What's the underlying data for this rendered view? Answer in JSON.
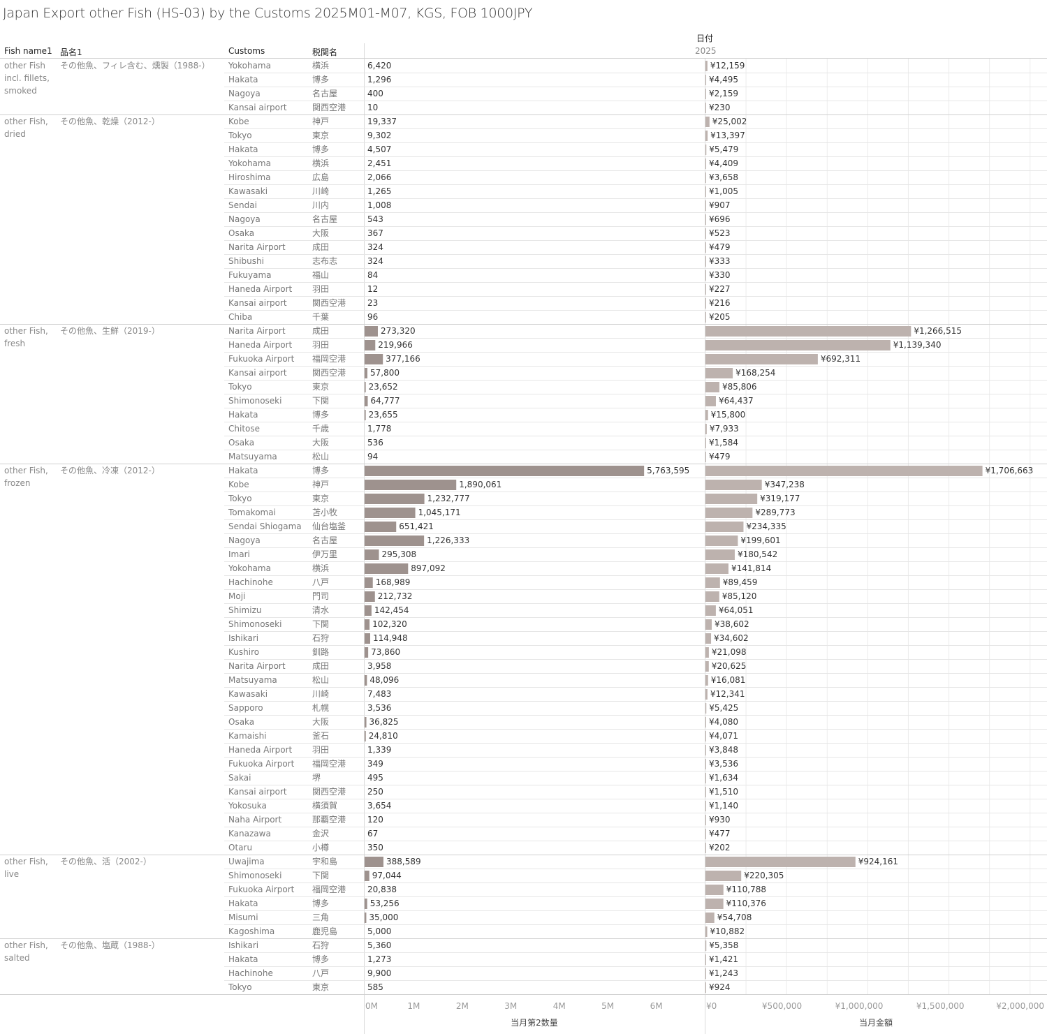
{
  "title": "Japan Export other Fish (HS-03) by the Customs 2025M01-M07, KGS, FOB 1000JPY",
  "headers": {
    "fish_name": "Fish name1",
    "hinmei": "品名1",
    "customs": "Customs",
    "zeikan": "税関名",
    "date_label": "日付",
    "year": "2025"
  },
  "colors": {
    "quantity_bar": "#9e928e",
    "value_bar": "#bdb2ae",
    "grid": "#ececec",
    "row_line": "#e6e6e6"
  },
  "chart_data": {
    "type": "bar",
    "orientation": "horizontal",
    "xlabel_quantity": "当月第2数量",
    "xlabel_value": "当月金額",
    "quantity_xlim": [
      0,
      7000000
    ],
    "value_xlim": [
      0,
      2100000
    ],
    "quantity_ticks": [
      "0M",
      "1M",
      "2M",
      "3M",
      "4M",
      "5M",
      "6M"
    ],
    "value_ticks": [
      "¥0",
      "¥500,000",
      "¥1,000,000",
      "¥1,500,000",
      "¥2,000,000"
    ],
    "groups": [
      {
        "fish": [
          "other Fish",
          "incl. fillets,",
          "smoked"
        ],
        "hinmei": "その他魚、フィレ含む、燻製（1988-）",
        "rows": [
          {
            "customs": "Yokohama",
            "zeikan": "横浜",
            "quantity": 6420,
            "quantity_label": "6,420",
            "value": 12159,
            "value_label": "¥12,159"
          },
          {
            "customs": "Hakata",
            "zeikan": "博多",
            "quantity": 1296,
            "quantity_label": "1,296",
            "value": 4495,
            "value_label": "¥4,495"
          },
          {
            "customs": "Nagoya",
            "zeikan": "名古屋",
            "quantity": 400,
            "quantity_label": "400",
            "value": 2159,
            "value_label": "¥2,159"
          },
          {
            "customs": "Kansai airport",
            "zeikan": "関西空港",
            "quantity": 10,
            "quantity_label": "10",
            "value": 230,
            "value_label": "¥230"
          }
        ]
      },
      {
        "fish": [
          "other Fish,",
          "dried"
        ],
        "hinmei": "その他魚、乾燥（2012-）",
        "rows": [
          {
            "customs": "Kobe",
            "zeikan": "神戸",
            "quantity": 19337,
            "quantity_label": "19,337",
            "value": 25002,
            "value_label": "¥25,002"
          },
          {
            "customs": "Tokyo",
            "zeikan": "東京",
            "quantity": 9302,
            "quantity_label": "9,302",
            "value": 13397,
            "value_label": "¥13,397"
          },
          {
            "customs": "Hakata",
            "zeikan": "博多",
            "quantity": 4507,
            "quantity_label": "4,507",
            "value": 5479,
            "value_label": "¥5,479"
          },
          {
            "customs": "Yokohama",
            "zeikan": "横浜",
            "quantity": 2451,
            "quantity_label": "2,451",
            "value": 4409,
            "value_label": "¥4,409"
          },
          {
            "customs": "Hiroshima",
            "zeikan": "広島",
            "quantity": 2066,
            "quantity_label": "2,066",
            "value": 3658,
            "value_label": "¥3,658"
          },
          {
            "customs": "Kawasaki",
            "zeikan": "川崎",
            "quantity": 1265,
            "quantity_label": "1,265",
            "value": 1005,
            "value_label": "¥1,005"
          },
          {
            "customs": "Sendai",
            "zeikan": "川内",
            "quantity": 1008,
            "quantity_label": "1,008",
            "value": 907,
            "value_label": "¥907"
          },
          {
            "customs": "Nagoya",
            "zeikan": "名古屋",
            "quantity": 543,
            "quantity_label": "543",
            "value": 696,
            "value_label": "¥696"
          },
          {
            "customs": "Osaka",
            "zeikan": "大阪",
            "quantity": 367,
            "quantity_label": "367",
            "value": 523,
            "value_label": "¥523"
          },
          {
            "customs": "Narita Airport",
            "zeikan": "成田",
            "quantity": 324,
            "quantity_label": "324",
            "value": 479,
            "value_label": "¥479"
          },
          {
            "customs": "Shibushi",
            "zeikan": "志布志",
            "quantity": 324,
            "quantity_label": "324",
            "value": 333,
            "value_label": "¥333"
          },
          {
            "customs": "Fukuyama",
            "zeikan": "福山",
            "quantity": 84,
            "quantity_label": "84",
            "value": 330,
            "value_label": "¥330"
          },
          {
            "customs": "Haneda Airport",
            "zeikan": "羽田",
            "quantity": 12,
            "quantity_label": "12",
            "value": 227,
            "value_label": "¥227"
          },
          {
            "customs": "Kansai airport",
            "zeikan": "関西空港",
            "quantity": 23,
            "quantity_label": "23",
            "value": 216,
            "value_label": "¥216"
          },
          {
            "customs": "Chiba",
            "zeikan": "千葉",
            "quantity": 96,
            "quantity_label": "96",
            "value": 205,
            "value_label": "¥205"
          }
        ]
      },
      {
        "fish": [
          "other Fish,",
          "fresh"
        ],
        "hinmei": "その他魚、生鮮（2019-）",
        "rows": [
          {
            "customs": "Narita Airport",
            "zeikan": "成田",
            "quantity": 273320,
            "quantity_label": "273,320",
            "value": 1266515,
            "value_label": "¥1,266,515"
          },
          {
            "customs": "Haneda Airport",
            "zeikan": "羽田",
            "quantity": 219966,
            "quantity_label": "219,966",
            "value": 1139340,
            "value_label": "¥1,139,340"
          },
          {
            "customs": "Fukuoka Airport",
            "zeikan": "福岡空港",
            "quantity": 377166,
            "quantity_label": "377,166",
            "value": 692311,
            "value_label": "¥692,311"
          },
          {
            "customs": "Kansai airport",
            "zeikan": "関西空港",
            "quantity": 57800,
            "quantity_label": "57,800",
            "value": 168254,
            "value_label": "¥168,254"
          },
          {
            "customs": "Tokyo",
            "zeikan": "東京",
            "quantity": 23652,
            "quantity_label": "23,652",
            "value": 85806,
            "value_label": "¥85,806"
          },
          {
            "customs": "Shimonoseki",
            "zeikan": "下関",
            "quantity": 64777,
            "quantity_label": "64,777",
            "value": 64437,
            "value_label": "¥64,437"
          },
          {
            "customs": "Hakata",
            "zeikan": "博多",
            "quantity": 23655,
            "quantity_label": "23,655",
            "value": 15800,
            "value_label": "¥15,800"
          },
          {
            "customs": "Chitose",
            "zeikan": "千歳",
            "quantity": 1778,
            "quantity_label": "1,778",
            "value": 7933,
            "value_label": "¥7,933"
          },
          {
            "customs": "Osaka",
            "zeikan": "大阪",
            "quantity": 536,
            "quantity_label": "536",
            "value": 1584,
            "value_label": "¥1,584"
          },
          {
            "customs": "Matsuyama",
            "zeikan": "松山",
            "quantity": 94,
            "quantity_label": "94",
            "value": 479,
            "value_label": "¥479"
          }
        ]
      },
      {
        "fish": [
          "other Fish,",
          "frozen"
        ],
        "hinmei": "その他魚、冷凍（2012-）",
        "rows": [
          {
            "customs": "Hakata",
            "zeikan": "博多",
            "quantity": 5763595,
            "quantity_label": "5,763,595",
            "value": 1706663,
            "value_label": "¥1,706,663"
          },
          {
            "customs": "Kobe",
            "zeikan": "神戸",
            "quantity": 1890061,
            "quantity_label": "1,890,061",
            "value": 347238,
            "value_label": "¥347,238"
          },
          {
            "customs": "Tokyo",
            "zeikan": "東京",
            "quantity": 1232777,
            "quantity_label": "1,232,777",
            "value": 319177,
            "value_label": "¥319,177"
          },
          {
            "customs": "Tomakomai",
            "zeikan": "苫小牧",
            "quantity": 1045171,
            "quantity_label": "1,045,171",
            "value": 289773,
            "value_label": "¥289,773"
          },
          {
            "customs": "Sendai Shiogama",
            "zeikan": "仙台塩釜",
            "quantity": 651421,
            "quantity_label": "651,421",
            "value": 234335,
            "value_label": "¥234,335"
          },
          {
            "customs": "Nagoya",
            "zeikan": "名古屋",
            "quantity": 1226333,
            "quantity_label": "1,226,333",
            "value": 199601,
            "value_label": "¥199,601"
          },
          {
            "customs": "Imari",
            "zeikan": "伊万里",
            "quantity": 295308,
            "quantity_label": "295,308",
            "value": 180542,
            "value_label": "¥180,542"
          },
          {
            "customs": "Yokohama",
            "zeikan": "横浜",
            "quantity": 897092,
            "quantity_label": "897,092",
            "value": 141814,
            "value_label": "¥141,814"
          },
          {
            "customs": "Hachinohe",
            "zeikan": "八戸",
            "quantity": 168989,
            "quantity_label": "168,989",
            "value": 89459,
            "value_label": "¥89,459"
          },
          {
            "customs": "Moji",
            "zeikan": "門司",
            "quantity": 212732,
            "quantity_label": "212,732",
            "value": 85120,
            "value_label": "¥85,120"
          },
          {
            "customs": "Shimizu",
            "zeikan": "清水",
            "quantity": 142454,
            "quantity_label": "142,454",
            "value": 64051,
            "value_label": "¥64,051"
          },
          {
            "customs": "Shimonoseki",
            "zeikan": "下関",
            "quantity": 102320,
            "quantity_label": "102,320",
            "value": 38602,
            "value_label": "¥38,602"
          },
          {
            "customs": "Ishikari",
            "zeikan": "石狩",
            "quantity": 114948,
            "quantity_label": "114,948",
            "value": 34602,
            "value_label": "¥34,602"
          },
          {
            "customs": "Kushiro",
            "zeikan": "釧路",
            "quantity": 73860,
            "quantity_label": "73,860",
            "value": 21098,
            "value_label": "¥21,098"
          },
          {
            "customs": "Narita Airport",
            "zeikan": "成田",
            "quantity": 3958,
            "quantity_label": "3,958",
            "value": 20625,
            "value_label": "¥20,625"
          },
          {
            "customs": "Matsuyama",
            "zeikan": "松山",
            "quantity": 48096,
            "quantity_label": "48,096",
            "value": 16081,
            "value_label": "¥16,081"
          },
          {
            "customs": "Kawasaki",
            "zeikan": "川崎",
            "quantity": 7483,
            "quantity_label": "7,483",
            "value": 12341,
            "value_label": "¥12,341"
          },
          {
            "customs": "Sapporo",
            "zeikan": "札幌",
            "quantity": 3536,
            "quantity_label": "3,536",
            "value": 5425,
            "value_label": "¥5,425"
          },
          {
            "customs": "Osaka",
            "zeikan": "大阪",
            "quantity": 36825,
            "quantity_label": "36,825",
            "value": 4080,
            "value_label": "¥4,080"
          },
          {
            "customs": "Kamaishi",
            "zeikan": "釜石",
            "quantity": 24810,
            "quantity_label": "24,810",
            "value": 4071,
            "value_label": "¥4,071"
          },
          {
            "customs": "Haneda Airport",
            "zeikan": "羽田",
            "quantity": 1339,
            "quantity_label": "1,339",
            "value": 3848,
            "value_label": "¥3,848"
          },
          {
            "customs": "Fukuoka Airport",
            "zeikan": "福岡空港",
            "quantity": 349,
            "quantity_label": "349",
            "value": 3536,
            "value_label": "¥3,536"
          },
          {
            "customs": "Sakai",
            "zeikan": "堺",
            "quantity": 495,
            "quantity_label": "495",
            "value": 1634,
            "value_label": "¥1,634"
          },
          {
            "customs": "Kansai airport",
            "zeikan": "関西空港",
            "quantity": 250,
            "quantity_label": "250",
            "value": 1510,
            "value_label": "¥1,510"
          },
          {
            "customs": "Yokosuka",
            "zeikan": "横須賀",
            "quantity": 3654,
            "quantity_label": "3,654",
            "value": 1140,
            "value_label": "¥1,140"
          },
          {
            "customs": "Naha Airport",
            "zeikan": "那覇空港",
            "quantity": 120,
            "quantity_label": "120",
            "value": 930,
            "value_label": "¥930"
          },
          {
            "customs": "Kanazawa",
            "zeikan": "金沢",
            "quantity": 67,
            "quantity_label": "67",
            "value": 477,
            "value_label": "¥477"
          },
          {
            "customs": "Otaru",
            "zeikan": "小樽",
            "quantity": 350,
            "quantity_label": "350",
            "value": 202,
            "value_label": "¥202"
          }
        ]
      },
      {
        "fish": [
          "other Fish,",
          "live"
        ],
        "hinmei": "その他魚、活（2002-）",
        "rows": [
          {
            "customs": "Uwajima",
            "zeikan": "宇和島",
            "quantity": 388589,
            "quantity_label": "388,589",
            "value": 924161,
            "value_label": "¥924,161"
          },
          {
            "customs": "Shimonoseki",
            "zeikan": "下関",
            "quantity": 97044,
            "quantity_label": "97,044",
            "value": 220305,
            "value_label": "¥220,305"
          },
          {
            "customs": "Fukuoka Airport",
            "zeikan": "福岡空港",
            "quantity": 20838,
            "quantity_label": "20,838",
            "value": 110788,
            "value_label": "¥110,788"
          },
          {
            "customs": "Hakata",
            "zeikan": "博多",
            "quantity": 53256,
            "quantity_label": "53,256",
            "value": 110376,
            "value_label": "¥110,376"
          },
          {
            "customs": "Misumi",
            "zeikan": "三角",
            "quantity": 35000,
            "quantity_label": "35,000",
            "value": 54708,
            "value_label": "¥54,708"
          },
          {
            "customs": "Kagoshima",
            "zeikan": "鹿児島",
            "quantity": 5000,
            "quantity_label": "5,000",
            "value": 10882,
            "value_label": "¥10,882"
          }
        ]
      },
      {
        "fish": [
          "other Fish,",
          "salted"
        ],
        "hinmei": "その他魚、塩蔵（1988-）",
        "rows": [
          {
            "customs": "Ishikari",
            "zeikan": "石狩",
            "quantity": 5360,
            "quantity_label": "5,360",
            "value": 5358,
            "value_label": "¥5,358"
          },
          {
            "customs": "Hakata",
            "zeikan": "博多",
            "quantity": 1273,
            "quantity_label": "1,273",
            "value": 1421,
            "value_label": "¥1,421"
          },
          {
            "customs": "Hachinohe",
            "zeikan": "八戸",
            "quantity": 9900,
            "quantity_label": "9,900",
            "value": 1243,
            "value_label": "¥1,243"
          },
          {
            "customs": "Tokyo",
            "zeikan": "東京",
            "quantity": 585,
            "quantity_label": "585",
            "value": 924,
            "value_label": "¥924"
          }
        ]
      }
    ]
  }
}
